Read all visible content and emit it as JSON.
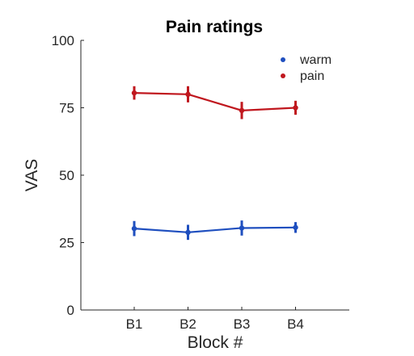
{
  "chart_data": {
    "type": "line",
    "title": "Pain ratings",
    "xlabel": "Block #",
    "ylabel": "VAS",
    "categories": [
      "B1",
      "B2",
      "B3",
      "B4"
    ],
    "ylim": [
      0,
      100
    ],
    "yticks": [
      0,
      25,
      50,
      75,
      100
    ],
    "grid": false,
    "legend_position": "top-right",
    "series": [
      {
        "name": "warm",
        "color": "#1f4fbf",
        "values": [
          30.2,
          28.8,
          30.4,
          30.6
        ],
        "error": [
          2.8,
          2.8,
          2.8,
          2.0
        ]
      },
      {
        "name": "pain",
        "color": "#c0171e",
        "values": [
          80.5,
          80.0,
          74.0,
          75.0
        ],
        "error": [
          2.5,
          3.0,
          3.2,
          2.6
        ]
      }
    ]
  }
}
